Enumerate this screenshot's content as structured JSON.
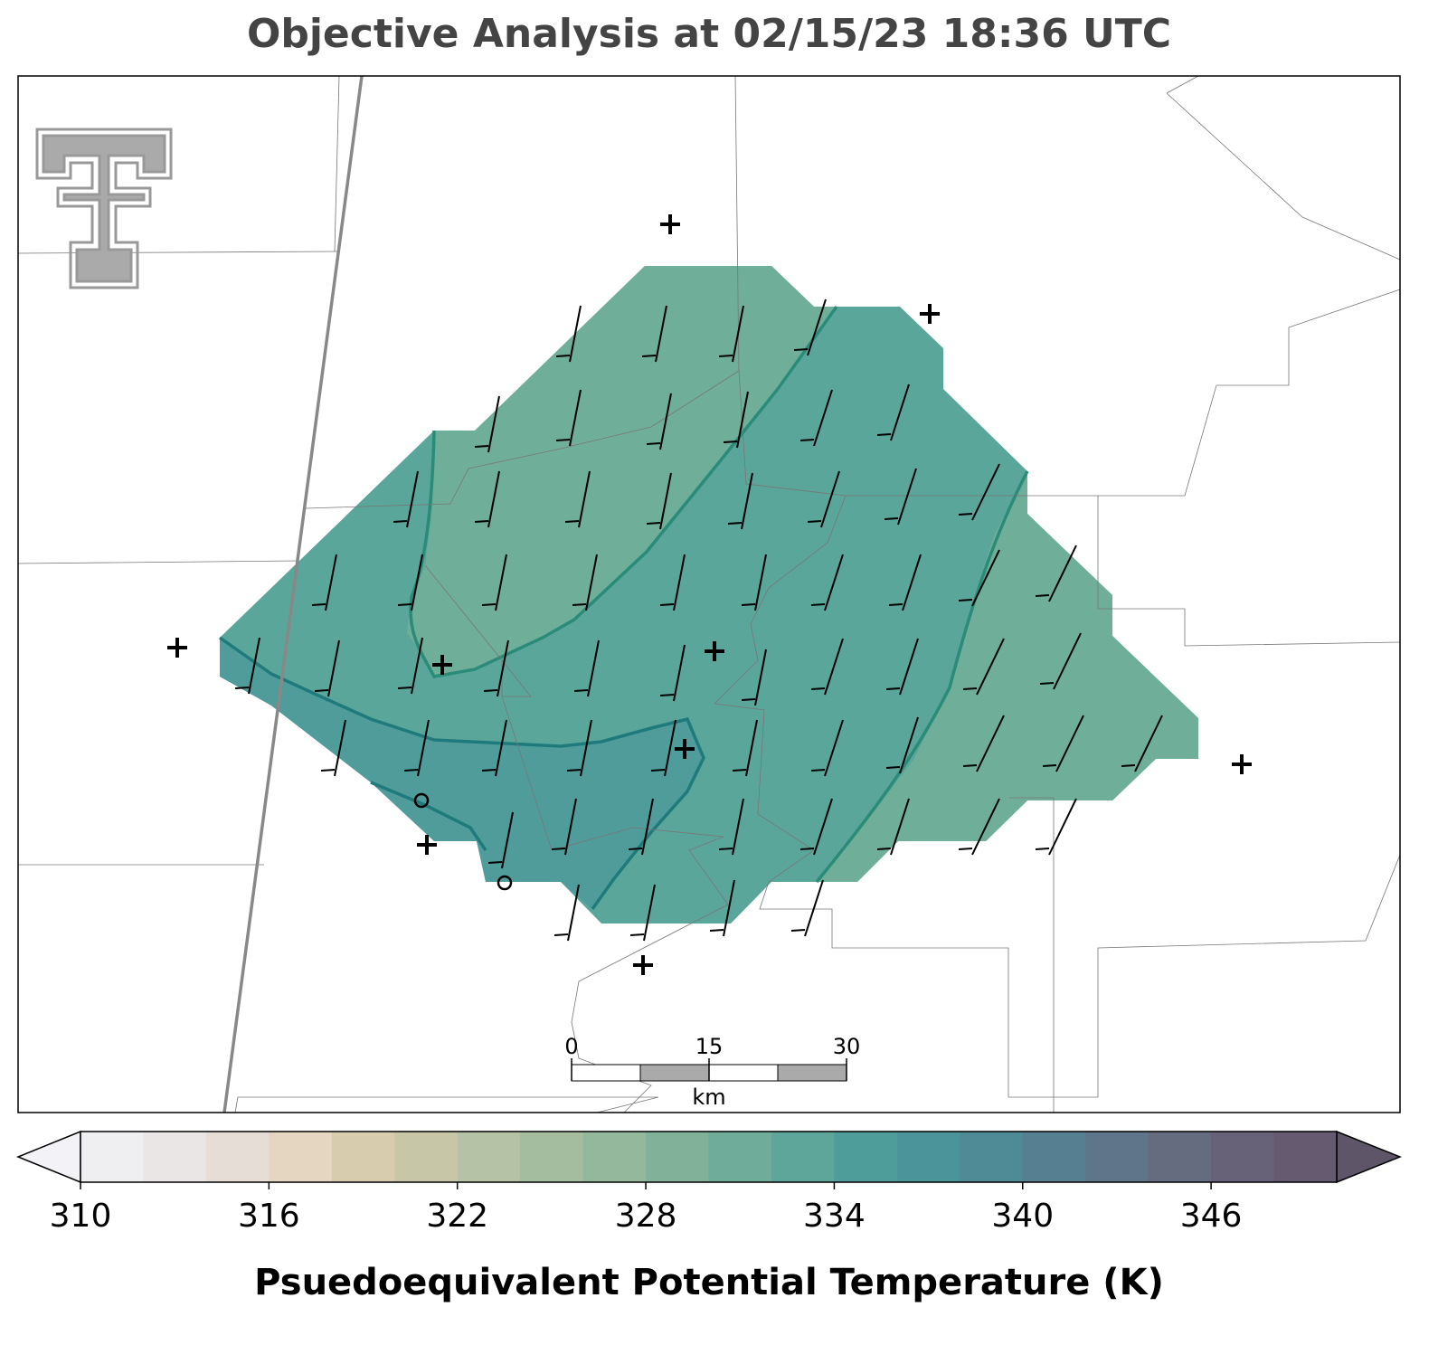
{
  "title": "Objective Analysis at 02/15/23 18:36 UTC",
  "colorbar": {
    "label": "Psuedoequivalent Potential Temperature (K)",
    "lim": [
      310,
      350
    ],
    "ticks": [
      310,
      316,
      322,
      328,
      334,
      340,
      346
    ],
    "colors": [
      "#efeef0",
      "#ebe6e6",
      "#e6ddd6",
      "#e4d6c0",
      "#d8ccae",
      "#c7c6a6",
      "#b5c2a5",
      "#a4bd9f",
      "#94b89c",
      "#82b199",
      "#6fac99",
      "#5ea59a",
      "#4f9d9a",
      "#4b9499",
      "#4f8a97",
      "#577f92",
      "#5f7589",
      "#666c80",
      "#676278",
      "#655a70"
    ],
    "under_color": "#f3f2f6",
    "over_color": "#5f5569"
  },
  "scale_bar": {
    "lim": [
      0,
      30
    ],
    "ticks": [
      0,
      15,
      30
    ],
    "unit": "km"
  }
}
